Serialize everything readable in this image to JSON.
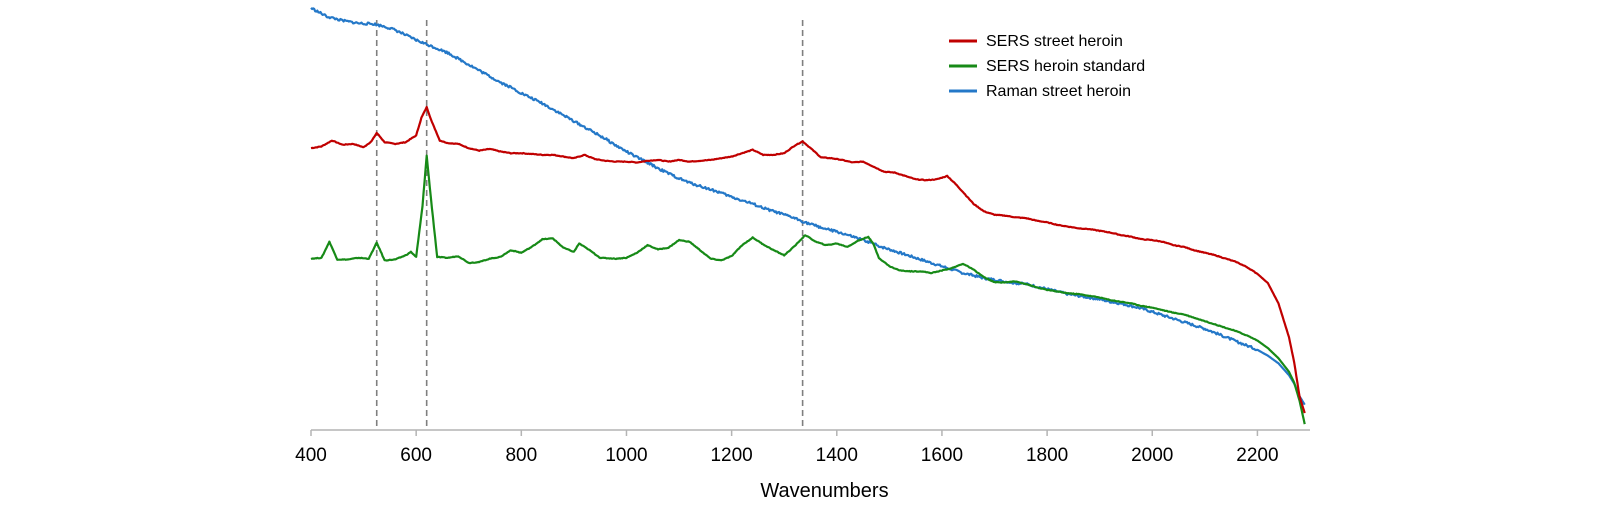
{
  "chart_data": {
    "type": "line",
    "title": "",
    "xlabel": "Wavenumbers",
    "ylabel": "",
    "xlim": [
      400,
      2300
    ],
    "ylim": [
      0,
      100
    ],
    "x_ticks": [
      400,
      600,
      800,
      1000,
      1200,
      1400,
      1600,
      1800,
      2000,
      2200
    ],
    "y_axis_shown": false,
    "grid": false,
    "legend_position": "top-right",
    "reference_lines_x": [
      525,
      620,
      1335
    ],
    "series": [
      {
        "name": "SERS street heroin",
        "color": "#c00000",
        "points": [
          [
            400,
            66.8
          ],
          [
            420,
            67.2
          ],
          [
            440,
            68.6
          ],
          [
            460,
            67.6
          ],
          [
            480,
            67.8
          ],
          [
            500,
            67
          ],
          [
            515,
            68.4
          ],
          [
            525,
            70.4
          ],
          [
            540,
            68.2
          ],
          [
            560,
            67.8
          ],
          [
            580,
            68.2
          ],
          [
            600,
            69.8
          ],
          [
            610,
            74
          ],
          [
            620,
            76.5
          ],
          [
            630,
            73
          ],
          [
            645,
            68.6
          ],
          [
            660,
            68
          ],
          [
            680,
            67.8
          ],
          [
            700,
            66.8
          ],
          [
            720,
            66.2
          ],
          [
            740,
            66.6
          ],
          [
            760,
            66
          ],
          [
            780,
            65.6
          ],
          [
            800,
            65.6
          ],
          [
            820,
            65.4
          ],
          [
            840,
            65.2
          ],
          [
            860,
            65.2
          ],
          [
            880,
            64.8
          ],
          [
            900,
            64.4
          ],
          [
            920,
            65.2
          ],
          [
            940,
            64.2
          ],
          [
            960,
            63.8
          ],
          [
            980,
            63.6
          ],
          [
            1000,
            63.6
          ],
          [
            1020,
            63.4
          ],
          [
            1040,
            63.8
          ],
          [
            1060,
            64
          ],
          [
            1080,
            63.6
          ],
          [
            1100,
            64
          ],
          [
            1120,
            63.6
          ],
          [
            1140,
            63.8
          ],
          [
            1160,
            64
          ],
          [
            1180,
            64.4
          ],
          [
            1200,
            64.8
          ],
          [
            1220,
            65.6
          ],
          [
            1240,
            66.4
          ],
          [
            1260,
            65.2
          ],
          [
            1280,
            65.2
          ],
          [
            1300,
            65.6
          ],
          [
            1320,
            67.4
          ],
          [
            1335,
            68.4
          ],
          [
            1350,
            66.8
          ],
          [
            1370,
            64.6
          ],
          [
            1390,
            64.4
          ],
          [
            1410,
            64
          ],
          [
            1430,
            63.4
          ],
          [
            1450,
            63.6
          ],
          [
            1470,
            62.4
          ],
          [
            1490,
            61.2
          ],
          [
            1510,
            61
          ],
          [
            1530,
            60.2
          ],
          [
            1550,
            59.4
          ],
          [
            1570,
            59.2
          ],
          [
            1590,
            59.4
          ],
          [
            1610,
            60.2
          ],
          [
            1625,
            58.4
          ],
          [
            1640,
            56.4
          ],
          [
            1660,
            53.6
          ],
          [
            1680,
            51.8
          ],
          [
            1700,
            51
          ],
          [
            1720,
            50.8
          ],
          [
            1740,
            50.4
          ],
          [
            1760,
            50.2
          ],
          [
            1780,
            49.6
          ],
          [
            1800,
            49.2
          ],
          [
            1820,
            48.6
          ],
          [
            1840,
            48.2
          ],
          [
            1860,
            47.8
          ],
          [
            1880,
            47.6
          ],
          [
            1900,
            47.2
          ],
          [
            1920,
            46.8
          ],
          [
            1940,
            46.2
          ],
          [
            1960,
            45.8
          ],
          [
            1980,
            45.2
          ],
          [
            2000,
            45
          ],
          [
            2020,
            44.6
          ],
          [
            2040,
            43.8
          ],
          [
            2060,
            43.4
          ],
          [
            2080,
            42.6
          ],
          [
            2100,
            42
          ],
          [
            2120,
            41.4
          ],
          [
            2140,
            40.6
          ],
          [
            2160,
            39.8
          ],
          [
            2180,
            38.6
          ],
          [
            2200,
            37
          ],
          [
            2220,
            34.8
          ],
          [
            2240,
            30
          ],
          [
            2260,
            22
          ],
          [
            2270,
            16
          ],
          [
            2280,
            8
          ],
          [
            2290,
            4
          ]
        ]
      },
      {
        "name": "SERS heroin standard",
        "color": "#178a17",
        "points": [
          [
            400,
            40.6
          ],
          [
            420,
            40.8
          ],
          [
            435,
            44.6
          ],
          [
            450,
            40.4
          ],
          [
            470,
            40.4
          ],
          [
            490,
            40.8
          ],
          [
            510,
            40.6
          ],
          [
            525,
            44.4
          ],
          [
            540,
            40.2
          ],
          [
            560,
            40.4
          ],
          [
            580,
            41.4
          ],
          [
            590,
            42.2
          ],
          [
            600,
            41
          ],
          [
            612,
            53
          ],
          [
            620,
            65
          ],
          [
            628,
            55
          ],
          [
            640,
            41
          ],
          [
            660,
            40.8
          ],
          [
            680,
            41.2
          ],
          [
            700,
            39.6
          ],
          [
            720,
            39.8
          ],
          [
            740,
            40.6
          ],
          [
            760,
            41
          ],
          [
            780,
            42.6
          ],
          [
            800,
            42
          ],
          [
            820,
            43.4
          ],
          [
            840,
            45.2
          ],
          [
            860,
            45.4
          ],
          [
            880,
            43.2
          ],
          [
            900,
            42.2
          ],
          [
            910,
            44.2
          ],
          [
            930,
            42.6
          ],
          [
            950,
            40.8
          ],
          [
            980,
            40.6
          ],
          [
            1000,
            40.8
          ],
          [
            1020,
            42
          ],
          [
            1040,
            43.8
          ],
          [
            1060,
            42.8
          ],
          [
            1080,
            43.2
          ],
          [
            1100,
            45
          ],
          [
            1120,
            44.6
          ],
          [
            1140,
            42.6
          ],
          [
            1160,
            40.6
          ],
          [
            1180,
            40.2
          ],
          [
            1200,
            41.2
          ],
          [
            1220,
            43.8
          ],
          [
            1240,
            45.6
          ],
          [
            1260,
            44
          ],
          [
            1280,
            42.6
          ],
          [
            1300,
            41.4
          ],
          [
            1320,
            43.6
          ],
          [
            1340,
            46.2
          ],
          [
            1360,
            44.6
          ],
          [
            1380,
            43.8
          ],
          [
            1400,
            44.2
          ],
          [
            1420,
            43.4
          ],
          [
            1440,
            44.8
          ],
          [
            1460,
            45.8
          ],
          [
            1470,
            44
          ],
          [
            1480,
            40.8
          ],
          [
            1500,
            38.8
          ],
          [
            1520,
            37.8
          ],
          [
            1540,
            37.6
          ],
          [
            1560,
            37.6
          ],
          [
            1580,
            37.2
          ],
          [
            1600,
            37.8
          ],
          [
            1620,
            38.4
          ],
          [
            1640,
            39.4
          ],
          [
            1660,
            38
          ],
          [
            1680,
            36.2
          ],
          [
            1700,
            35
          ],
          [
            1720,
            35
          ],
          [
            1740,
            35.2
          ],
          [
            1760,
            34.6
          ],
          [
            1780,
            33.8
          ],
          [
            1800,
            33.2
          ],
          [
            1820,
            32.8
          ],
          [
            1840,
            32.4
          ],
          [
            1860,
            32.2
          ],
          [
            1880,
            31.8
          ],
          [
            1900,
            31.4
          ],
          [
            1920,
            30.8
          ],
          [
            1940,
            30.4
          ],
          [
            1960,
            30
          ],
          [
            1980,
            29.4
          ],
          [
            2000,
            29
          ],
          [
            2020,
            28.4
          ],
          [
            2040,
            27.8
          ],
          [
            2060,
            27.4
          ],
          [
            2080,
            26.6
          ],
          [
            2100,
            25.8
          ],
          [
            2120,
            25
          ],
          [
            2140,
            24.2
          ],
          [
            2160,
            23.4
          ],
          [
            2180,
            22.4
          ],
          [
            2200,
            21.2
          ],
          [
            2220,
            19.4
          ],
          [
            2240,
            17
          ],
          [
            2260,
            13.8
          ],
          [
            2270,
            11.2
          ],
          [
            2280,
            7
          ],
          [
            2290,
            1.4
          ]
        ]
      },
      {
        "name": "Raman street heroin",
        "color": "#2478c8",
        "points": [
          [
            400,
            100
          ],
          [
            430,
            98
          ],
          [
            460,
            97
          ],
          [
            490,
            96.4
          ],
          [
            520,
            96.2
          ],
          [
            540,
            95.6
          ],
          [
            560,
            94.8
          ],
          [
            580,
            93.6
          ],
          [
            600,
            92.4
          ],
          [
            620,
            91.4
          ],
          [
            640,
            90.4
          ],
          [
            660,
            89.4
          ],
          [
            680,
            88
          ],
          [
            700,
            86.6
          ],
          [
            720,
            85.2
          ],
          [
            740,
            83.8
          ],
          [
            760,
            82.4
          ],
          [
            780,
            81.2
          ],
          [
            800,
            79.8
          ],
          [
            820,
            78.6
          ],
          [
            840,
            77.4
          ],
          [
            860,
            76
          ],
          [
            880,
            74.6
          ],
          [
            900,
            73.2
          ],
          [
            920,
            71.8
          ],
          [
            940,
            70.4
          ],
          [
            960,
            69
          ],
          [
            980,
            67.4
          ],
          [
            1000,
            66
          ],
          [
            1020,
            64.6
          ],
          [
            1040,
            63.4
          ],
          [
            1060,
            62
          ],
          [
            1080,
            60.8
          ],
          [
            1100,
            59.6
          ],
          [
            1120,
            58.6
          ],
          [
            1140,
            57.8
          ],
          [
            1160,
            57
          ],
          [
            1180,
            56.2
          ],
          [
            1200,
            55.2
          ],
          [
            1220,
            54.4
          ],
          [
            1240,
            53.6
          ],
          [
            1260,
            52.6
          ],
          [
            1280,
            51.8
          ],
          [
            1300,
            51
          ],
          [
            1320,
            50.2
          ],
          [
            1340,
            49.2
          ],
          [
            1360,
            48.4
          ],
          [
            1380,
            47.6
          ],
          [
            1400,
            47
          ],
          [
            1420,
            46.2
          ],
          [
            1440,
            45.4
          ],
          [
            1460,
            44.6
          ],
          [
            1480,
            43.6
          ],
          [
            1500,
            42.8
          ],
          [
            1520,
            42
          ],
          [
            1540,
            41.2
          ],
          [
            1560,
            40.4
          ],
          [
            1580,
            39.6
          ],
          [
            1600,
            38.8
          ],
          [
            1620,
            38
          ],
          [
            1640,
            37.2
          ],
          [
            1660,
            36.6
          ],
          [
            1680,
            36
          ],
          [
            1700,
            35.6
          ],
          [
            1720,
            35.2
          ],
          [
            1740,
            34.8
          ],
          [
            1760,
            34.6
          ],
          [
            1780,
            34
          ],
          [
            1800,
            33.4
          ],
          [
            1820,
            32.8
          ],
          [
            1840,
            32.2
          ],
          [
            1860,
            31.8
          ],
          [
            1880,
            31.4
          ],
          [
            1900,
            31
          ],
          [
            1920,
            30.4
          ],
          [
            1940,
            30
          ],
          [
            1960,
            29.4
          ],
          [
            1980,
            28.8
          ],
          [
            2000,
            28
          ],
          [
            2020,
            27.2
          ],
          [
            2040,
            26.4
          ],
          [
            2060,
            25.6
          ],
          [
            2080,
            24.8
          ],
          [
            2100,
            24
          ],
          [
            2120,
            23
          ],
          [
            2140,
            22
          ],
          [
            2160,
            21
          ],
          [
            2180,
            20
          ],
          [
            2200,
            19
          ],
          [
            2220,
            17.6
          ],
          [
            2240,
            15.8
          ],
          [
            2260,
            13
          ],
          [
            2270,
            11
          ],
          [
            2280,
            8
          ],
          [
            2290,
            6
          ]
        ]
      }
    ]
  }
}
